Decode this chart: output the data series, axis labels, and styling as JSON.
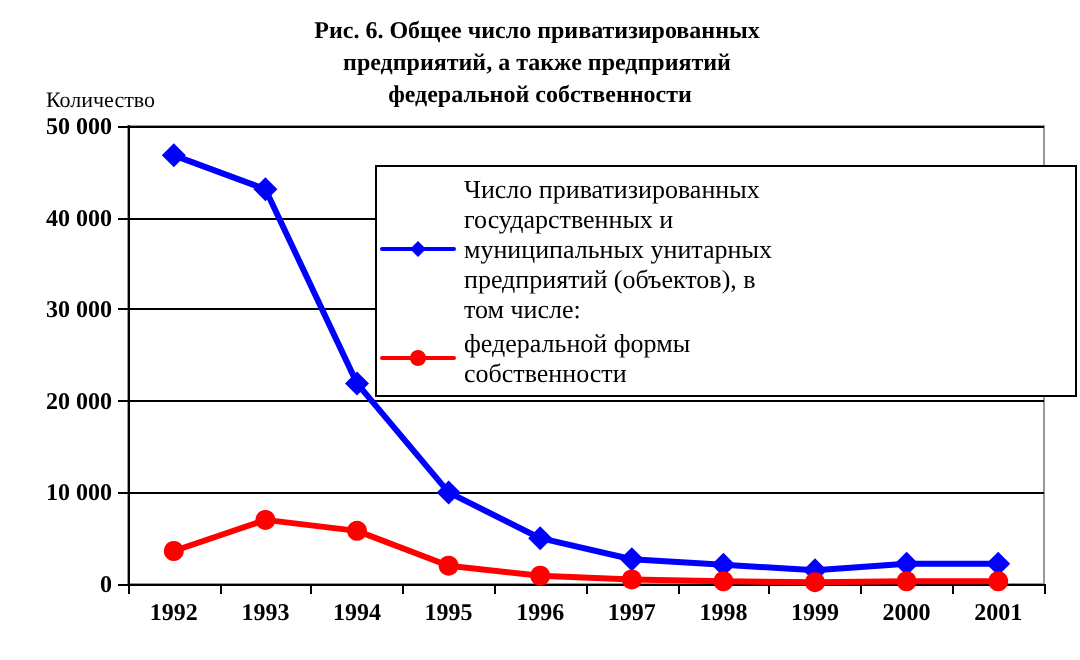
{
  "chart_data": {
    "type": "line",
    "title": "Рис. 6. Общее число приватизированных предприятий, а также предприятий федеральной собственности",
    "ylabel": "Количество",
    "categories": [
      "1992",
      "1993",
      "1994",
      "1995",
      "1996",
      "1997",
      "1998",
      "1999",
      "2000",
      "2001"
    ],
    "series": [
      {
        "name": "Число приватизированных государственных и муниципальных унитарных предприятий (объектов), в том числе:",
        "color": "#0000ff",
        "marker": "diamond",
        "values": [
          46800,
          43100,
          21900,
          10000,
          5000,
          2700,
          2100,
          1500,
          2200,
          2200
        ]
      },
      {
        "name": "федеральной формы собственности",
        "color": "#ff0000",
        "marker": "circle",
        "values": [
          3600,
          7000,
          5800,
          2000,
          900,
          500,
          300,
          200,
          300,
          300
        ]
      }
    ],
    "ylim": [
      0,
      50000
    ],
    "yticks": [
      0,
      10000,
      20000,
      30000,
      40000,
      50000
    ],
    "grid": "y",
    "legend": "top right",
    "line_style": "solid"
  }
}
